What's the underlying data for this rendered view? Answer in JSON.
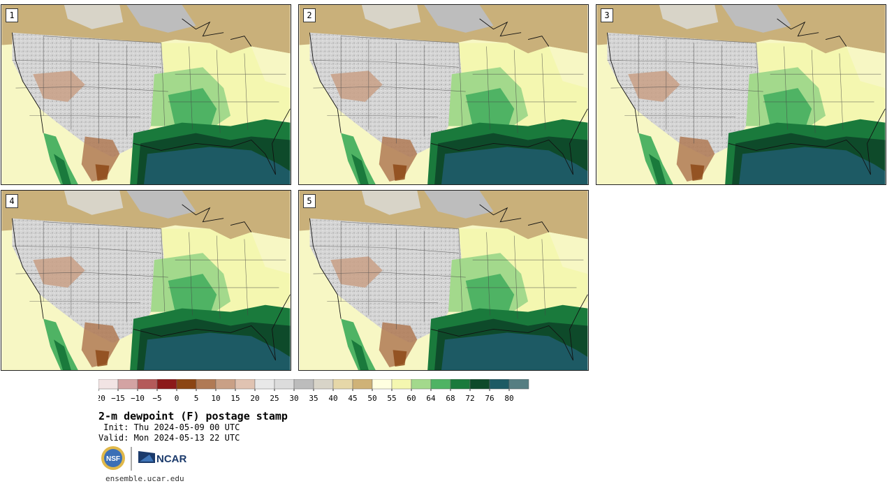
{
  "panels": [
    {
      "label": "1"
    },
    {
      "label": "2"
    },
    {
      "label": "3"
    },
    {
      "label": "4"
    },
    {
      "label": "5"
    }
  ],
  "colorbar": {
    "colors": [
      "#f2e4e4",
      "#d3a3a3",
      "#b45a5a",
      "#8c1a1a",
      "#8b4513",
      "#b07a55",
      "#c9a086",
      "#e0c3b2",
      "#e8e8e8",
      "#dcdcdc",
      "#bcbcbc",
      "#d8d4c8",
      "#e6d7a8",
      "#cfb277",
      "#ffffe0",
      "#f4f7b0",
      "#a3d98c",
      "#4fb364",
      "#1a7a3c",
      "#0e4a2a",
      "#1d5a64",
      "#567e82"
    ],
    "tick_labels": [
      "−20",
      "−15",
      "−10",
      "−5",
      "0",
      "5",
      "10",
      "15",
      "20",
      "25",
      "30",
      "35",
      "40",
      "45",
      "50",
      "55",
      "60",
      "64",
      "68",
      "72",
      "76",
      "80"
    ]
  },
  "title": "2-m dewpoint (F) postage stamp",
  "init": " Init: Thu 2024-05-09 00 UTC",
  "valid": "Valid: Mon 2024-05-13 22 UTC",
  "logos": {
    "nsf": "NSF",
    "ncar": "NCAR"
  },
  "website": "ensemble.ucar.edu"
}
